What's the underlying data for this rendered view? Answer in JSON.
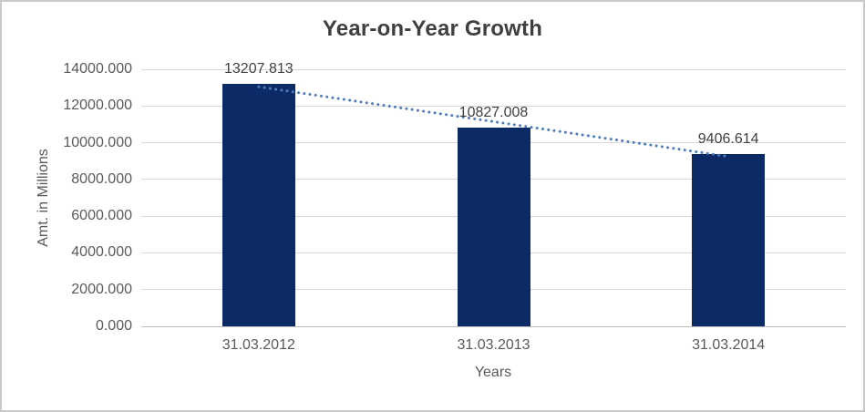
{
  "chart_data": {
    "type": "bar",
    "title": "Year-on-Year Growth",
    "categories": [
      "31.03.2012",
      "31.03.2013",
      "31.03.2014"
    ],
    "values": [
      13207.813,
      10827.008,
      9406.614
    ],
    "data_labels": [
      "13207.813",
      "10827.008",
      "9406.614"
    ],
    "xlabel": "Years",
    "ylabel": "Amt. in Millions",
    "ylim": [
      0,
      14000
    ],
    "ytick_step": 2000,
    "ytick_labels": [
      "0.000",
      "2000.000",
      "4000.000",
      "6000.000",
      "8000.000",
      "10000.000",
      "12000.000",
      "14000.000"
    ],
    "grid": true,
    "legend": "none",
    "trendline": {
      "type": "linear",
      "style": "dotted"
    },
    "colors": {
      "bar": "#0b2a66",
      "trendline": "#4d7dbf",
      "gridline": "#d9d9d9",
      "axis_line": "#bfbfbf",
      "tick_text": "#595959",
      "title_text": "#3f3f3f",
      "data_label_text": "#404040",
      "frame_border": "#c9c9c9",
      "background": "#ffffff"
    }
  }
}
